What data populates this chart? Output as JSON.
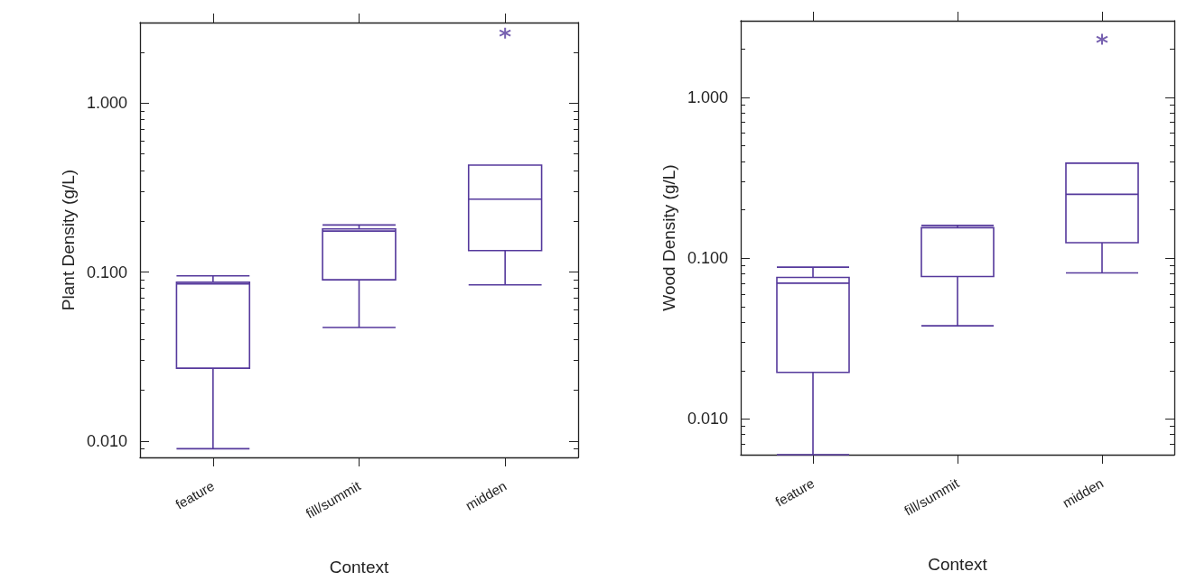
{
  "chart_data": [
    {
      "type": "box",
      "xlabel": "Context",
      "ylabel": "Plant Density (g/L)",
      "categories": [
        "feature",
        "fill/summit",
        "midden"
      ],
      "log": "y",
      "ylim": [
        0.008,
        3
      ],
      "yticks": [
        {
          "value": 0.01,
          "label": "0.010"
        },
        {
          "value": 0.1,
          "label": "0.100"
        },
        {
          "value": 1,
          "label": "1.000"
        }
      ],
      "grid": false,
      "series": [
        {
          "color": "#55399c",
          "boxes": [
            {
              "low": 0.009,
              "q1": 0.027,
              "median": 0.085,
              "q3": 0.087,
              "high": 0.095
            },
            {
              "low": 0.047,
              "q1": 0.09,
              "median": 0.175,
              "q3": 0.18,
              "high": 0.19
            },
            {
              "low": 0.084,
              "q1": 0.134,
              "median": 0.27,
              "q3": 0.43,
              "high": 0.43,
              "outliers": [
                2.6
              ]
            }
          ]
        }
      ]
    },
    {
      "type": "box",
      "xlabel": "Context",
      "ylabel": "Wood Density (g/L)",
      "categories": [
        "feature",
        "fill/summit",
        "midden"
      ],
      "log": "y",
      "ylim": [
        0.006,
        3
      ],
      "yticks": [
        {
          "value": 0.01,
          "label": "0.010"
        },
        {
          "value": 0.1,
          "label": "0.100"
        },
        {
          "value": 1,
          "label": "1.000"
        }
      ],
      "grid": false,
      "series": [
        {
          "color": "#55399c",
          "boxes": [
            {
              "low": 0.006,
              "q1": 0.0195,
              "median": 0.07,
              "q3": 0.076,
              "high": 0.088
            },
            {
              "low": 0.038,
              "q1": 0.077,
              "median": 0.155,
              "q3": 0.155,
              "high": 0.16
            },
            {
              "low": 0.081,
              "q1": 0.125,
              "median": 0.25,
              "q3": 0.39,
              "high": 0.39,
              "outliers": [
                2.3
              ]
            }
          ]
        }
      ]
    }
  ]
}
